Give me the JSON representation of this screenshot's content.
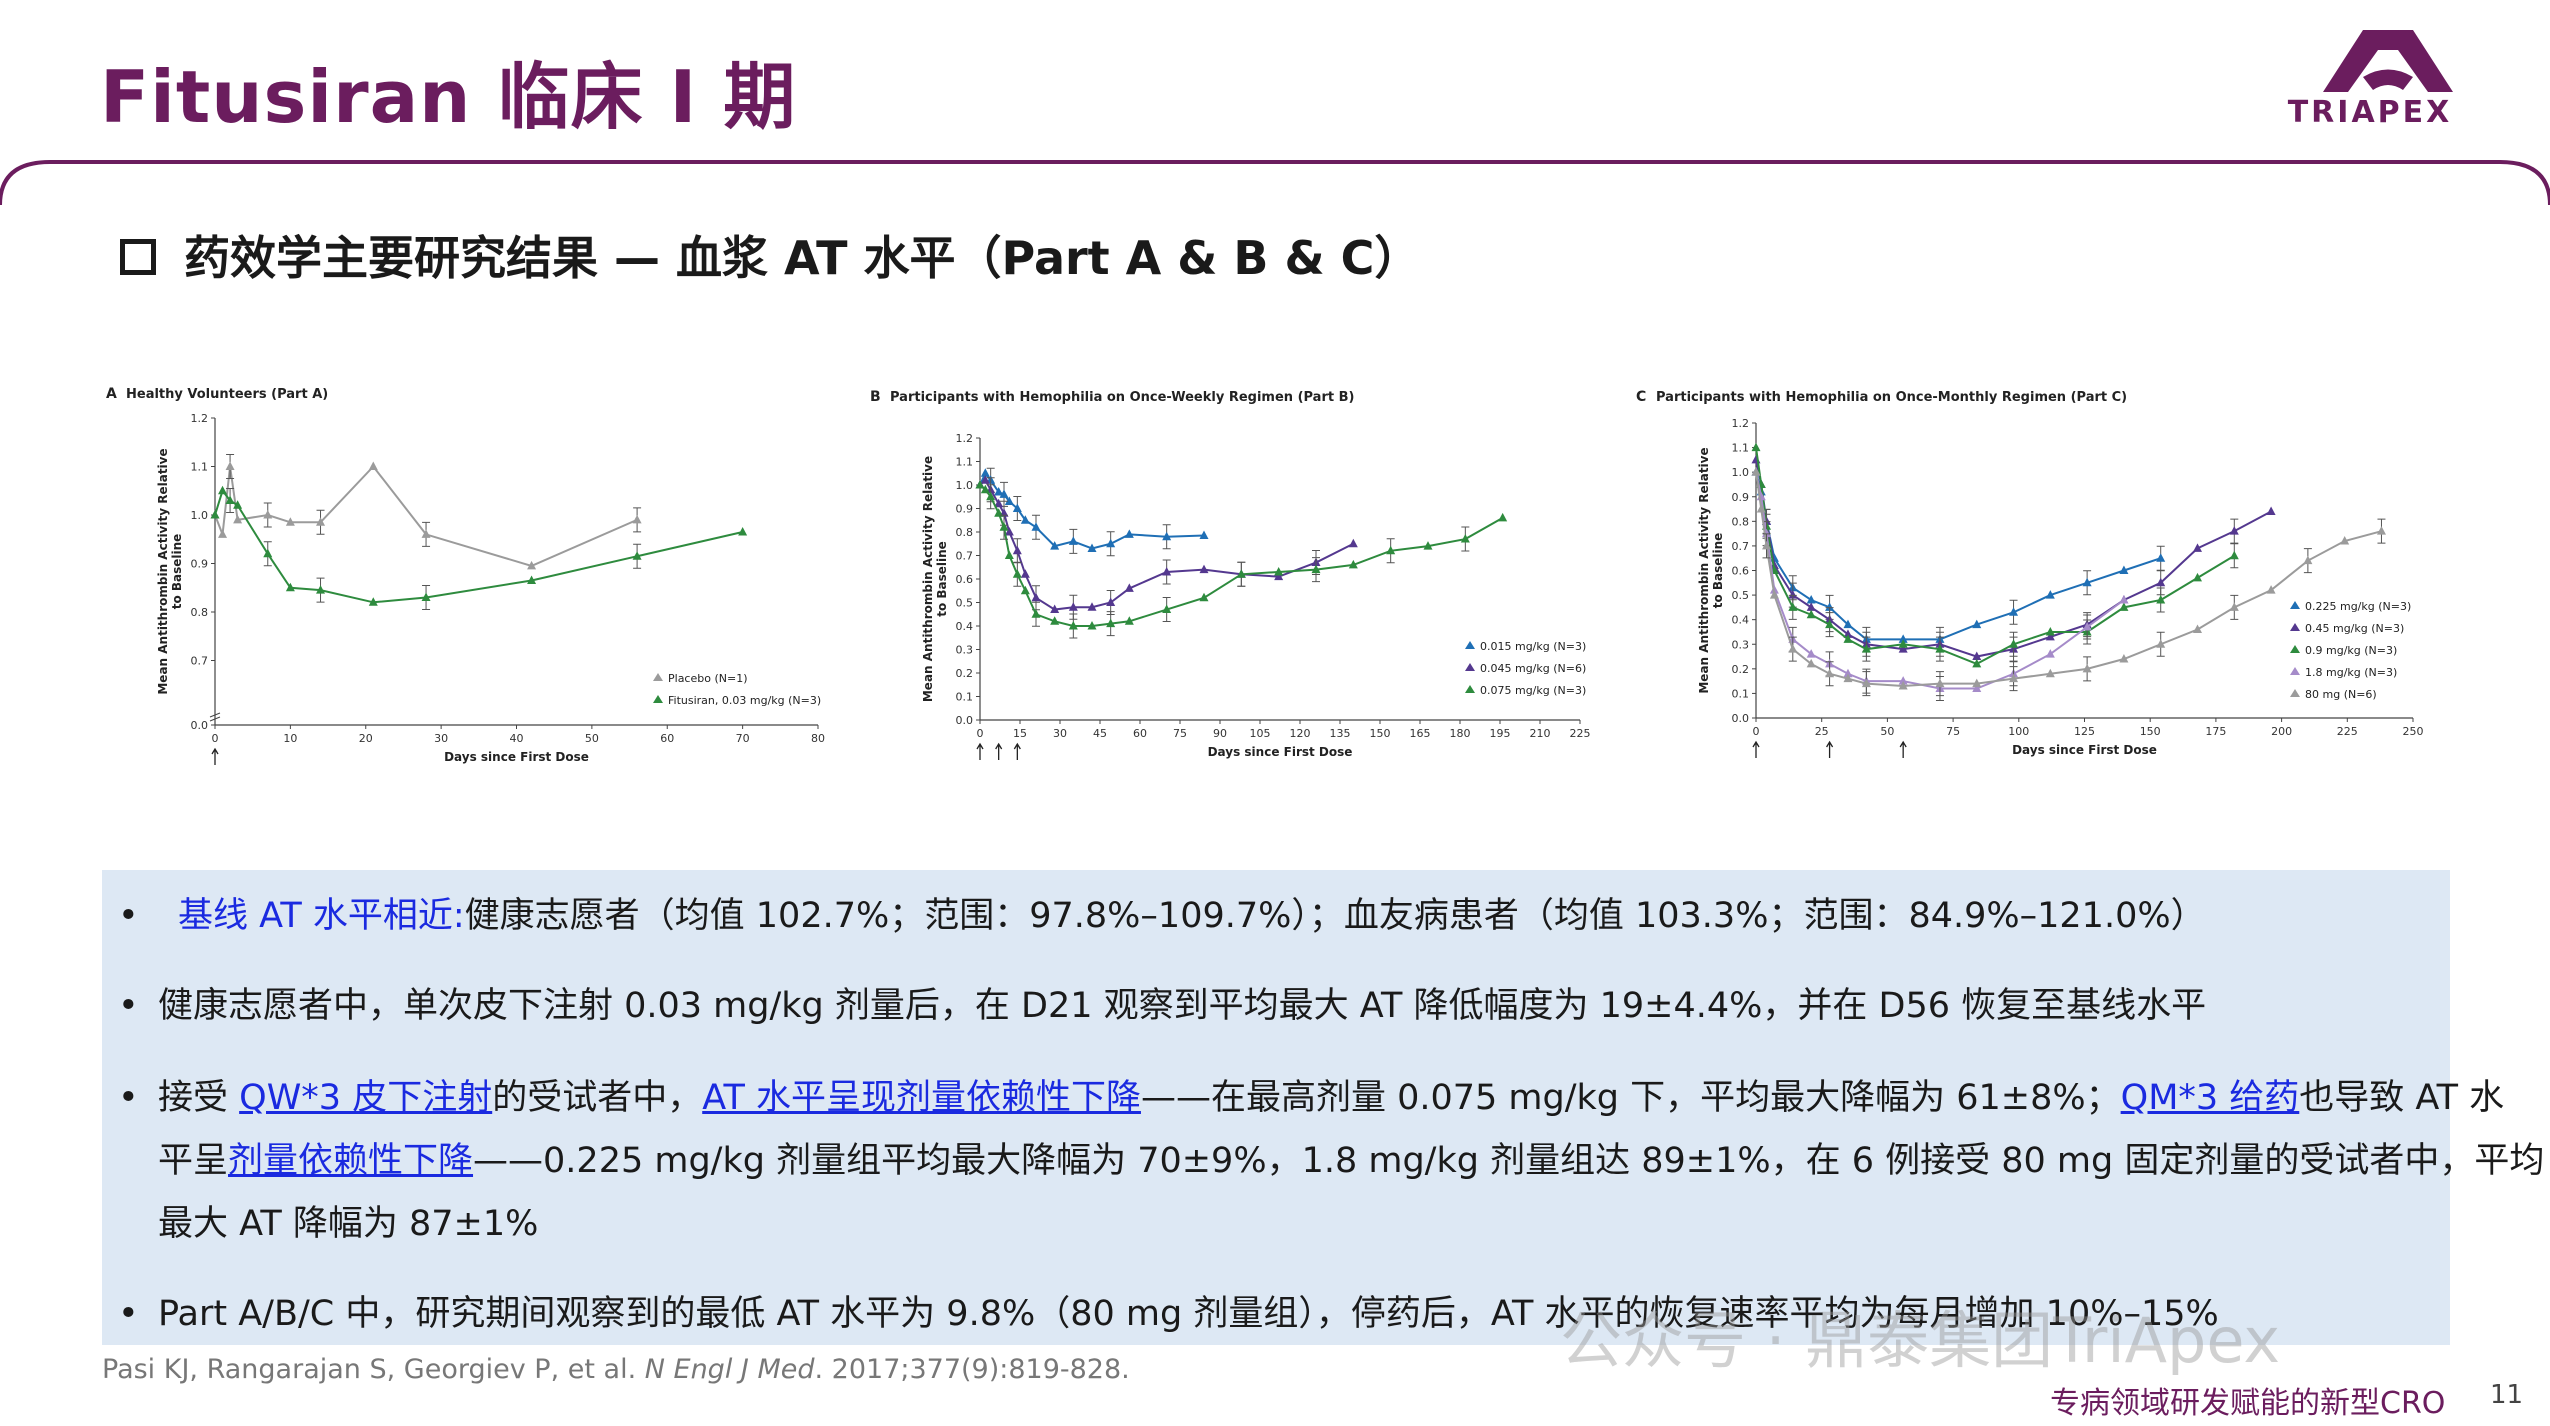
{
  "header": {
    "title": "Fitusiran 临床 I 期",
    "logo_text": "TRIAPEX"
  },
  "subtitle": "药效学主要研究结果 — 血浆 AT 水平（Part A & B & C）",
  "chart_data": [
    {
      "type": "line",
      "panel_label": "A",
      "title": "Healthy Volunteers (Part A)",
      "xlabel": "Days since First Dose",
      "ylabel": "Mean Antithrombin Activity Relative to Baseline",
      "xlim": [
        0,
        80
      ],
      "ylim": [
        0.0,
        1.2
      ],
      "x_ticks": [
        0,
        10,
        20,
        30,
        40,
        50,
        60,
        70,
        80
      ],
      "y_ticks": [
        "0.0",
        "0.7",
        "0.8",
        "0.9",
        "1.0",
        "1.1",
        "1.2"
      ],
      "dose_arrows": [
        0
      ],
      "legend_position": "bottom-right",
      "series": [
        {
          "name": "Placebo (N=1)",
          "color": "#9b9b9b",
          "marker": "triangle",
          "x": [
            0,
            1,
            2,
            3,
            7,
            10,
            14,
            21,
            28,
            42,
            56
          ],
          "y": [
            1.0,
            0.96,
            1.1,
            0.99,
            1.0,
            0.985,
            0.985,
            1.1,
            0.96,
            0.895,
            0.99
          ]
        },
        {
          "name": "Fitusiran, 0.03 mg/kg (N=3)",
          "color": "#2e8b3e",
          "marker": "triangle",
          "x": [
            0,
            1,
            2,
            3,
            7,
            10,
            14,
            21,
            28,
            42,
            56,
            70
          ],
          "y": [
            1.0,
            1.05,
            1.03,
            1.02,
            0.92,
            0.85,
            0.845,
            0.82,
            0.83,
            0.865,
            0.915,
            0.965
          ]
        }
      ]
    },
    {
      "type": "line",
      "panel_label": "B",
      "title": "Participants with Hemophilia on Once-Weekly Regimen (Part B)",
      "xlabel": "Days since First Dose",
      "ylabel": "Mean Antithrombin Activity Relative to Baseline",
      "xlim": [
        0,
        225
      ],
      "ylim": [
        0.0,
        1.2
      ],
      "x_ticks": [
        0,
        15,
        30,
        45,
        60,
        75,
        90,
        105,
        120,
        135,
        150,
        165,
        180,
        195,
        210,
        225
      ],
      "y_ticks": [
        "0.0",
        "0.1",
        "0.2",
        "0.3",
        "0.4",
        "0.5",
        "0.6",
        "0.7",
        "0.8",
        "0.9",
        "1.0",
        "1.1",
        "1.2"
      ],
      "dose_arrows": [
        0,
        7,
        14
      ],
      "legend_position": "bottom-right",
      "series": [
        {
          "name": "0.015 mg/kg (N=3)",
          "color": "#1f6fb5",
          "marker": "triangle",
          "x": [
            0,
            2,
            4,
            7,
            9,
            11,
            14,
            17,
            21,
            28,
            35,
            42,
            49,
            56,
            70,
            84
          ],
          "y": [
            1.0,
            1.05,
            1.02,
            0.97,
            0.96,
            0.93,
            0.9,
            0.85,
            0.82,
            0.74,
            0.76,
            0.73,
            0.75,
            0.79,
            0.78,
            0.785
          ]
        },
        {
          "name": "0.045 mg/kg (N=6)",
          "color": "#54388f",
          "marker": "triangle",
          "x": [
            0,
            2,
            4,
            7,
            9,
            11,
            14,
            17,
            21,
            28,
            35,
            42,
            49,
            56,
            70,
            84,
            98,
            112,
            126,
            140
          ],
          "y": [
            1.0,
            1.02,
            0.98,
            0.92,
            0.88,
            0.8,
            0.72,
            0.62,
            0.52,
            0.47,
            0.48,
            0.48,
            0.5,
            0.56,
            0.63,
            0.64,
            0.62,
            0.61,
            0.67,
            0.75
          ]
        },
        {
          "name": "0.075 mg/kg (N=3)",
          "color": "#2e8b3e",
          "marker": "triangle",
          "x": [
            0,
            2,
            4,
            7,
            9,
            11,
            14,
            17,
            21,
            28,
            35,
            42,
            49,
            56,
            70,
            84,
            98,
            112,
            126,
            140,
            154,
            168,
            182,
            196
          ],
          "y": [
            1.0,
            0.98,
            0.95,
            0.88,
            0.82,
            0.7,
            0.62,
            0.55,
            0.45,
            0.42,
            0.4,
            0.4,
            0.41,
            0.42,
            0.47,
            0.52,
            0.62,
            0.63,
            0.64,
            0.66,
            0.72,
            0.74,
            0.77,
            0.86
          ]
        }
      ]
    },
    {
      "type": "line",
      "panel_label": "C",
      "title": "Participants with Hemophilia on Once-Monthly Regimen (Part C)",
      "xlabel": "Days since First Dose",
      "ylabel": "Mean Antithrombin Activity Relative to Baseline",
      "xlim": [
        0,
        250
      ],
      "ylim": [
        0.0,
        1.2
      ],
      "x_ticks": [
        0,
        25,
        50,
        75,
        100,
        125,
        150,
        175,
        200,
        225,
        250
      ],
      "y_ticks": [
        "0.0",
        "0.1",
        "0.2",
        "0.3",
        "0.4",
        "0.5",
        "0.6",
        "0.7",
        "0.8",
        "0.9",
        "1.0",
        "1.1",
        "1.2"
      ],
      "dose_arrows": [
        0,
        28,
        56
      ],
      "legend_position": "bottom-right",
      "series": [
        {
          "name": "0.225 mg/kg (N=3)",
          "color": "#1f6fb5",
          "marker": "triangle",
          "x": [
            0,
            2,
            4,
            7,
            14,
            21,
            28,
            35,
            42,
            56,
            70,
            84,
            98,
            112,
            126,
            140,
            154
          ],
          "y": [
            1.0,
            0.92,
            0.8,
            0.65,
            0.53,
            0.48,
            0.45,
            0.38,
            0.32,
            0.32,
            0.32,
            0.38,
            0.43,
            0.5,
            0.55,
            0.6,
            0.65
          ]
        },
        {
          "name": "0.45 mg/kg (N=3)",
          "color": "#54388f",
          "marker": "triangle",
          "x": [
            0,
            2,
            4,
            7,
            14,
            21,
            28,
            35,
            42,
            56,
            70,
            84,
            98,
            112,
            126,
            140,
            154,
            168,
            182,
            196
          ],
          "y": [
            1.05,
            0.95,
            0.8,
            0.62,
            0.5,
            0.45,
            0.4,
            0.34,
            0.3,
            0.28,
            0.3,
            0.25,
            0.28,
            0.33,
            0.38,
            0.48,
            0.55,
            0.69,
            0.76,
            0.84
          ]
        },
        {
          "name": "0.9 mg/kg (N=3)",
          "color": "#2e8b3e",
          "marker": "triangle",
          "x": [
            0,
            2,
            4,
            7,
            14,
            21,
            28,
            35,
            42,
            56,
            70,
            84,
            98,
            112,
            126,
            140,
            154,
            168,
            182
          ],
          "y": [
            1.1,
            0.95,
            0.78,
            0.6,
            0.45,
            0.42,
            0.38,
            0.32,
            0.28,
            0.3,
            0.28,
            0.22,
            0.3,
            0.35,
            0.35,
            0.45,
            0.48,
            0.57,
            0.66
          ]
        },
        {
          "name": "1.8 mg/kg (N=3)",
          "color": "#a58bc9",
          "marker": "triangle",
          "x": [
            0,
            2,
            4,
            7,
            14,
            21,
            28,
            35,
            42,
            56,
            70,
            84,
            98,
            112,
            126,
            140
          ],
          "y": [
            1.0,
            0.9,
            0.75,
            0.52,
            0.32,
            0.26,
            0.22,
            0.18,
            0.15,
            0.15,
            0.12,
            0.12,
            0.18,
            0.26,
            0.37,
            0.48
          ]
        },
        {
          "name": "80 mg (N=6)",
          "color": "#9b9b9b",
          "marker": "triangle",
          "x": [
            0,
            2,
            4,
            7,
            14,
            21,
            28,
            35,
            42,
            56,
            70,
            84,
            98,
            112,
            126,
            140,
            154,
            168,
            182,
            196,
            210,
            224,
            238
          ],
          "y": [
            1.0,
            0.85,
            0.7,
            0.5,
            0.28,
            0.22,
            0.18,
            0.16,
            0.14,
            0.13,
            0.14,
            0.14,
            0.16,
            0.18,
            0.2,
            0.24,
            0.3,
            0.36,
            0.45,
            0.52,
            0.64,
            0.72,
            0.76
          ]
        }
      ]
    }
  ],
  "bullets": [
    {
      "dot": "•",
      "segments": [
        {
          "text": "基线 AT 水平相近:",
          "style": "hl"
        },
        {
          "text": "健康志愿者（均值 102.7%；范围：97.8%–109.7%）；血友病患者（均值 103.3%；范围：84.9%–121.0%）",
          "style": ""
        }
      ]
    },
    {
      "dot": "•",
      "segments": [
        {
          "text": "健康志愿者中，单次皮下注射 0.03 mg/kg 剂量后，在 D21 观察到平均最大 AT 降低幅度为 19±4.4%，并在 D56 恢复至基线水平",
          "style": ""
        }
      ]
    },
    {
      "dot": "•",
      "segments": [
        {
          "text": "接受 ",
          "style": ""
        },
        {
          "text": "QW*3 皮下注射",
          "style": "ul"
        },
        {
          "text": "的受试者中，",
          "style": ""
        },
        {
          "text": "AT 水平呈现剂量依赖性下降",
          "style": "ul"
        },
        {
          "text": "——在最高剂量 0.075 mg/kg 下，平均最大降幅为 61±8%；",
          "style": ""
        },
        {
          "text": "QM*3 给药",
          "style": "ul"
        },
        {
          "text": "也导致 AT 水",
          "style": ""
        }
      ]
    },
    {
      "dot": "",
      "segments": [
        {
          "text": "平呈",
          "style": ""
        },
        {
          "text": "剂量依赖性下降",
          "style": "ul"
        },
        {
          "text": "——0.225 mg/kg 剂量组平均最大降幅为 70±9%，1.8 mg/kg 剂量组达 89±1%，在 6 例接受 80 mg 固定剂量的受试者中，平均",
          "style": ""
        }
      ]
    },
    {
      "dot": "",
      "segments": [
        {
          "text": "最大 AT 降幅为 87±1%",
          "style": ""
        }
      ]
    },
    {
      "dot": "•",
      "segments": [
        {
          "text": "Part A/B/C 中，研究期间观察到的最低 AT 水平为 9.8%（80 mg 剂量组），停药后，AT 水平的恢复速率平均为每月增加 10%–15%",
          "style": ""
        }
      ]
    }
  ],
  "reference": {
    "authors": "Pasi KJ, Rangarajan S, Georgiev P, et al. ",
    "journal": "N Engl J Med",
    "rest": ". 2017;377(9):819-828."
  },
  "footer": {
    "tagline": "专病领域研发赋能的新型CRO",
    "page_number": "11"
  },
  "watermark": "公众号 · 鼎泰集团TriApex"
}
